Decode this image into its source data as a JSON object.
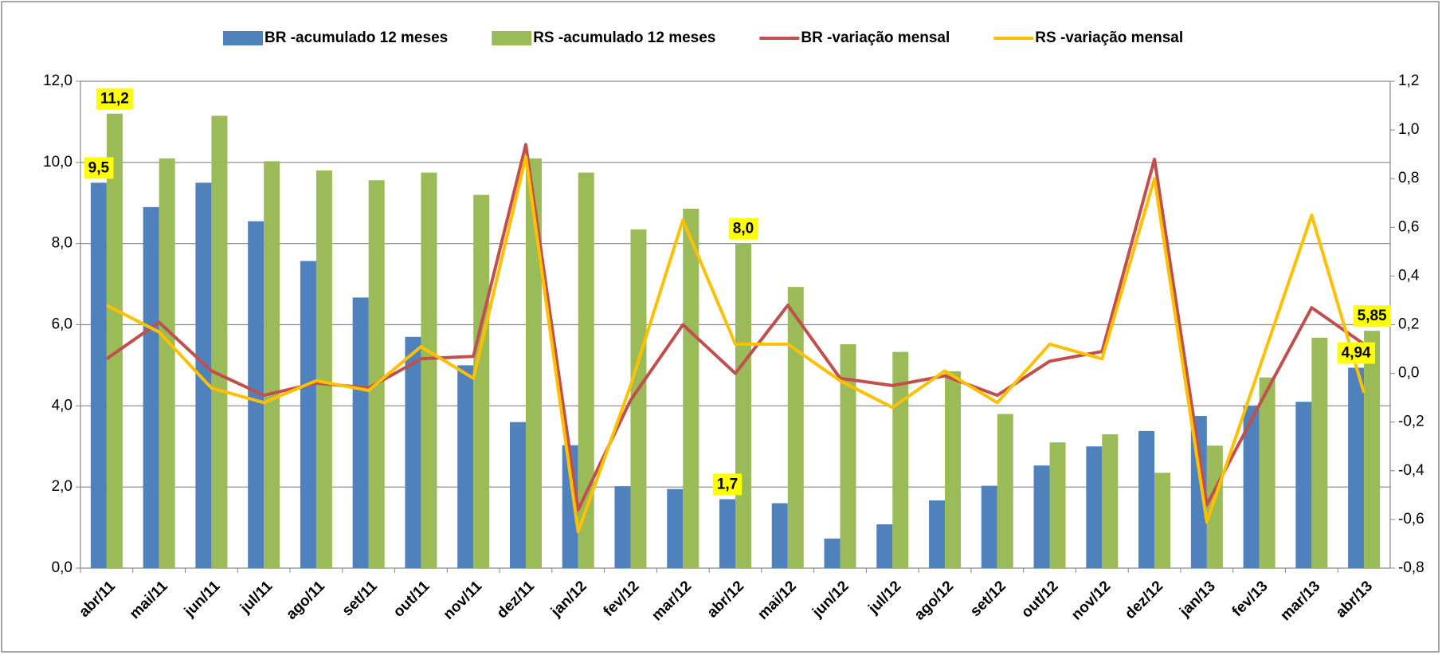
{
  "chart_data": {
    "type": "combo",
    "categories": [
      "abr/11",
      "mai/11",
      "jun/11",
      "jul/11",
      "ago/11",
      "set/11",
      "out/11",
      "nov/11",
      "dez/11",
      "jan/12",
      "fev/12",
      "mar/12",
      "abr/12",
      "mai/12",
      "jun/12",
      "jul/12",
      "ago/12",
      "set/12",
      "out/12",
      "nov/12",
      "dez/12",
      "jan/13",
      "fev/13",
      "mar/13",
      "abr/13"
    ],
    "series": [
      {
        "name": "BR -acumulado 12 meses",
        "type": "bar",
        "color": "#4f81bd",
        "values": [
          9.5,
          8.9,
          9.5,
          8.55,
          7.57,
          6.67,
          5.7,
          5.0,
          3.6,
          3.03,
          2.02,
          1.95,
          1.7,
          1.6,
          0.73,
          1.08,
          1.67,
          2.03,
          2.53,
          3.0,
          3.38,
          3.75,
          4.0,
          4.1,
          4.94
        ],
        "value_labels": [
          "9,5",
          null,
          null,
          null,
          null,
          null,
          null,
          null,
          null,
          null,
          null,
          null,
          "1,7",
          null,
          null,
          null,
          null,
          null,
          null,
          null,
          null,
          null,
          null,
          null,
          "4,94"
        ]
      },
      {
        "name": "RS -acumulado 12 meses",
        "type": "bar",
        "color": "#9bbb59",
        "values": [
          11.2,
          10.1,
          11.15,
          10.03,
          9.8,
          9.56,
          9.75,
          9.2,
          10.1,
          9.75,
          8.35,
          8.86,
          8.0,
          6.93,
          5.52,
          5.33,
          4.85,
          3.8,
          3.1,
          3.3,
          2.35,
          3.02,
          4.7,
          5.68,
          5.85
        ],
        "value_labels": [
          "11,2",
          null,
          null,
          null,
          null,
          null,
          null,
          null,
          null,
          null,
          null,
          null,
          "8,0",
          null,
          null,
          null,
          null,
          null,
          null,
          null,
          null,
          null,
          null,
          null,
          "5,85"
        ]
      },
      {
        "name": "BR -variação mensal",
        "type": "line",
        "axis": "y2",
        "color": "#c0504d",
        "values": [
          0.06,
          0.21,
          0.01,
          -0.09,
          -0.04,
          -0.06,
          0.06,
          0.07,
          0.94,
          -0.56,
          -0.11,
          0.2,
          0.0,
          0.28,
          -0.02,
          -0.05,
          -0.01,
          -0.09,
          0.05,
          0.09,
          0.88,
          -0.54,
          -0.13,
          0.27,
          0.12
        ]
      },
      {
        "name": "RS -variação mensal",
        "type": "line",
        "axis": "y2",
        "color": "#ffc000",
        "values": [
          0.28,
          0.17,
          -0.06,
          -0.12,
          -0.03,
          -0.07,
          0.11,
          -0.02,
          0.89,
          -0.65,
          -0.05,
          0.63,
          0.12,
          0.12,
          -0.03,
          -0.14,
          0.01,
          -0.12,
          0.12,
          0.06,
          0.8,
          -0.61,
          0.02,
          0.65,
          -0.08
        ]
      }
    ],
    "ylim": [
      0,
      12
    ],
    "yticks": [
      {
        "value": 0,
        "label": "0,0"
      },
      {
        "value": 2,
        "label": "2,0"
      },
      {
        "value": 4,
        "label": "4,0"
      },
      {
        "value": 6,
        "label": "6,0"
      },
      {
        "value": 8,
        "label": "8,0"
      },
      {
        "value": 10,
        "label": "10,0"
      },
      {
        "value": 12,
        "label": "12,0"
      }
    ],
    "y2lim": [
      -0.8,
      1.2
    ],
    "y2ticks": [
      {
        "value": -0.8,
        "label": "-0,8"
      },
      {
        "value": -0.6,
        "label": "-0,6"
      },
      {
        "value": -0.4,
        "label": "-0,4"
      },
      {
        "value": -0.2,
        "label": "-0,2"
      },
      {
        "value": 0,
        "label": "0,0"
      },
      {
        "value": 0.2,
        "label": "0,2"
      },
      {
        "value": 0.4,
        "label": "0,4"
      },
      {
        "value": 0.6,
        "label": "0,6"
      },
      {
        "value": 0.8,
        "label": "0,8"
      },
      {
        "value": 1.0,
        "label": "1,0"
      },
      {
        "value": 1.2,
        "label": "1,2"
      }
    ],
    "grid": true,
    "legend": "top"
  }
}
